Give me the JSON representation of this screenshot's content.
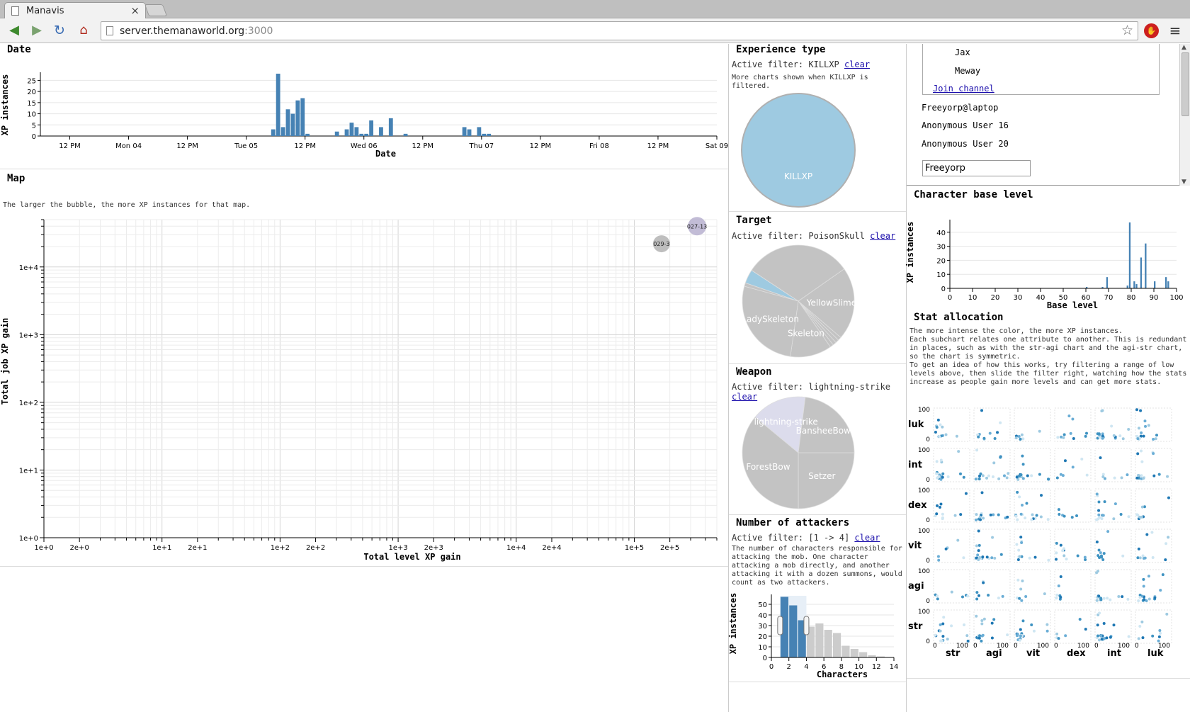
{
  "browser": {
    "tab_title": "Manavis",
    "tab_close": "×",
    "url_host": "server.themanaworld.org",
    "url_port": ":3000",
    "back_icon": "back-arrow-icon",
    "forward_icon": "forward-arrow-icon",
    "reload_icon": "reload-icon",
    "home_icon": "home-icon",
    "bookmark_icon": "star-icon",
    "menu_icon": "hamburger-menu-icon"
  },
  "date_panel": {
    "title": "Date",
    "chart_data": {
      "type": "bar",
      "xlabel": "Date",
      "ylabel": "XP instances",
      "yticks": [
        "0",
        "5",
        "10",
        "15",
        "20",
        "25"
      ],
      "ylim": [
        0,
        28
      ],
      "xticks": [
        "12 PM",
        "Mon 04",
        "12 PM",
        "Tue 05",
        "12 PM",
        "Wed 06",
        "12 PM",
        "Thu 07",
        "12 PM",
        "Fri 08",
        "12 PM",
        "Sat 09"
      ],
      "xlim_hours": [
        0,
        138
      ],
      "bars": [
        {
          "h": 47.5,
          "v": 3
        },
        {
          "h": 48.5,
          "v": 28
        },
        {
          "h": 49.5,
          "v": 4
        },
        {
          "h": 50.5,
          "v": 12
        },
        {
          "h": 51.5,
          "v": 10
        },
        {
          "h": 52.5,
          "v": 16
        },
        {
          "h": 53.5,
          "v": 17
        },
        {
          "h": 54.5,
          "v": 1
        },
        {
          "h": 60.5,
          "v": 2
        },
        {
          "h": 62.5,
          "v": 3
        },
        {
          "h": 63.5,
          "v": 6
        },
        {
          "h": 64.5,
          "v": 4
        },
        {
          "h": 65.5,
          "v": 1
        },
        {
          "h": 66.5,
          "v": 1
        },
        {
          "h": 67.5,
          "v": 7
        },
        {
          "h": 69.5,
          "v": 4
        },
        {
          "h": 71.5,
          "v": 8
        },
        {
          "h": 74.5,
          "v": 1
        },
        {
          "h": 86.5,
          "v": 4
        },
        {
          "h": 87.5,
          "v": 3
        },
        {
          "h": 89.5,
          "v": 4
        },
        {
          "h": 90.5,
          "v": 1
        },
        {
          "h": 91.5,
          "v": 1
        }
      ]
    }
  },
  "map_panel": {
    "title": "Map",
    "note": "The larger the bubble, the more XP instances for that map.",
    "chart_data": {
      "type": "scatter",
      "xlabel": "Total level XP gain",
      "ylabel": "Total job XP gain",
      "x_scale": "log",
      "y_scale": "log",
      "xlim": [
        1,
        500000
      ],
      "ylim": [
        1,
        50000
      ],
      "xticks": [
        "1e+0",
        "2e+0",
        "1e+1",
        "2e+1",
        "1e+2",
        "2e+2",
        "1e+3",
        "2e+3",
        "1e+4",
        "2e+4",
        "1e+5",
        "2e+5"
      ],
      "yticks": [
        "1e+0",
        "1e+1",
        "1e+2",
        "1e+3",
        "1e+4"
      ],
      "points": [
        {
          "label": "029-3",
          "x": 170000,
          "y": 22000
        },
        {
          "label": "027-13",
          "x": 340000,
          "y": 40000
        }
      ]
    }
  },
  "exp_panel": {
    "title": "Experience type",
    "filter_prefix": "Active filter: KILLXP",
    "clear": "clear",
    "note": "More charts shown when KILLXP is filtered.",
    "chart_data": {
      "type": "pie",
      "slices": [
        {
          "label": "KILLXP",
          "value": 100,
          "selected": true
        }
      ]
    },
    "colors": {
      "selected": "#9ecae1",
      "unselected": "#c3c3c3"
    }
  },
  "target_panel": {
    "title": "Target",
    "filter_prefix": "Active filter: PoisonSkull",
    "clear": "clear",
    "chart_data": {
      "type": "pie",
      "slices": [
        {
          "label": "YellowSlime",
          "value": 21,
          "show": true
        },
        {
          "label": "",
          "value": 1
        },
        {
          "label": "",
          "value": 1
        },
        {
          "label": "",
          "value": 1
        },
        {
          "label": "",
          "value": 1
        },
        {
          "label": "Skeleton",
          "value": 12,
          "show": true
        },
        {
          "label": "LadySkeleton",
          "value": 27,
          "show": true
        },
        {
          "label": "",
          "value": 1
        },
        {
          "label": "PoisonSkull",
          "value": 4,
          "selected": true,
          "show": false
        },
        {
          "label": "",
          "value": 31
        }
      ]
    }
  },
  "weapon_panel": {
    "title": "Weapon",
    "filter_prefix": "Active filter: lightning-strike",
    "clear": "clear",
    "chart_data": {
      "type": "pie",
      "slices": [
        {
          "label": "Setzer",
          "value": 25,
          "show": true
        },
        {
          "label": "ForestBow",
          "value": 36,
          "show": true
        },
        {
          "label": "lightning-strike",
          "value": 16,
          "selected": true,
          "show": true
        },
        {
          "label": "BansheeBow",
          "value": 23,
          "show": true
        }
      ]
    }
  },
  "attackers_panel": {
    "title": "Number of attackers",
    "filter_prefix": "Active filter: [1 -> 4]",
    "clear": "clear",
    "note": "The number of characters responsible for\nattacking the mob. One character\nattacking a mob directly, and another\nattacking it with a dozen summons, would\ncount as two attackers.",
    "chart_data": {
      "type": "bar",
      "xlabel": "Characters",
      "ylabel": "XP instances",
      "xlim": [
        0,
        14
      ],
      "ylim": [
        0,
        58
      ],
      "xticks": [
        "0",
        "2",
        "4",
        "6",
        "8",
        "10",
        "12",
        "14"
      ],
      "yticks": [
        "0",
        "10",
        "20",
        "30",
        "40",
        "50"
      ],
      "brush": [
        1,
        4
      ],
      "bars": [
        {
          "x": 1,
          "v": 57
        },
        {
          "x": 2,
          "v": 49
        },
        {
          "x": 3,
          "v": 35
        },
        {
          "x": 4,
          "v": 29
        },
        {
          "x": 5,
          "v": 32
        },
        {
          "x": 6,
          "v": 26
        },
        {
          "x": 7,
          "v": 23
        },
        {
          "x": 8,
          "v": 11
        },
        {
          "x": 9,
          "v": 8
        },
        {
          "x": 10,
          "v": 5
        },
        {
          "x": 11,
          "v": 2
        },
        {
          "x": 12,
          "v": 1
        }
      ]
    }
  },
  "chat": {
    "channel_users": [
      "Jax",
      "Meway"
    ],
    "join_label": "Join channel",
    "users": [
      "Freeyorp@laptop",
      "Anonymous User 16",
      "Anonymous User 20"
    ],
    "input_value": "Freeyorp"
  },
  "level_panel": {
    "title": "Character base level",
    "chart_data": {
      "type": "bar",
      "xlabel": "Base level",
      "ylabel": "XP instances",
      "xlim": [
        0,
        100
      ],
      "ylim": [
        0,
        48
      ],
      "xticks": [
        "0",
        "10",
        "20",
        "30",
        "40",
        "50",
        "60",
        "70",
        "80",
        "90",
        "100"
      ],
      "yticks": [
        "0",
        "10",
        "20",
        "30",
        "40"
      ],
      "bars": [
        {
          "x": 60,
          "v": 1
        },
        {
          "x": 67,
          "v": 1
        },
        {
          "x": 69,
          "v": 8
        },
        {
          "x": 78,
          "v": 2
        },
        {
          "x": 79,
          "v": 47
        },
        {
          "x": 81,
          "v": 5
        },
        {
          "x": 82,
          "v": 3
        },
        {
          "x": 84,
          "v": 22
        },
        {
          "x": 86,
          "v": 32
        },
        {
          "x": 90,
          "v": 5
        },
        {
          "x": 95,
          "v": 8
        },
        {
          "x": 96,
          "v": 5
        }
      ]
    }
  },
  "stat_panel": {
    "title": "Stat allocation",
    "note": "The more intense the color, the more XP instances.\nEach subchart relates one attribute to another. This is redundant\nin places, such as with the str-agi chart and the agi-str chart,\nso the chart is symmetric.\nTo get an idea of how this works, try filtering a range of low\nlevels above, then slide the filter right, watching how the stats\nincrease as people gain more levels and can get more stats.",
    "chart_data": {
      "type": "scatter",
      "rows": [
        "luk",
        "int",
        "dex",
        "vit",
        "agi",
        "str"
      ],
      "cols": [
        "str",
        "agi",
        "vit",
        "dex",
        "int",
        "luk"
      ],
      "tick_min": "0",
      "tick_max": "100",
      "range": [
        0,
        100
      ]
    }
  }
}
